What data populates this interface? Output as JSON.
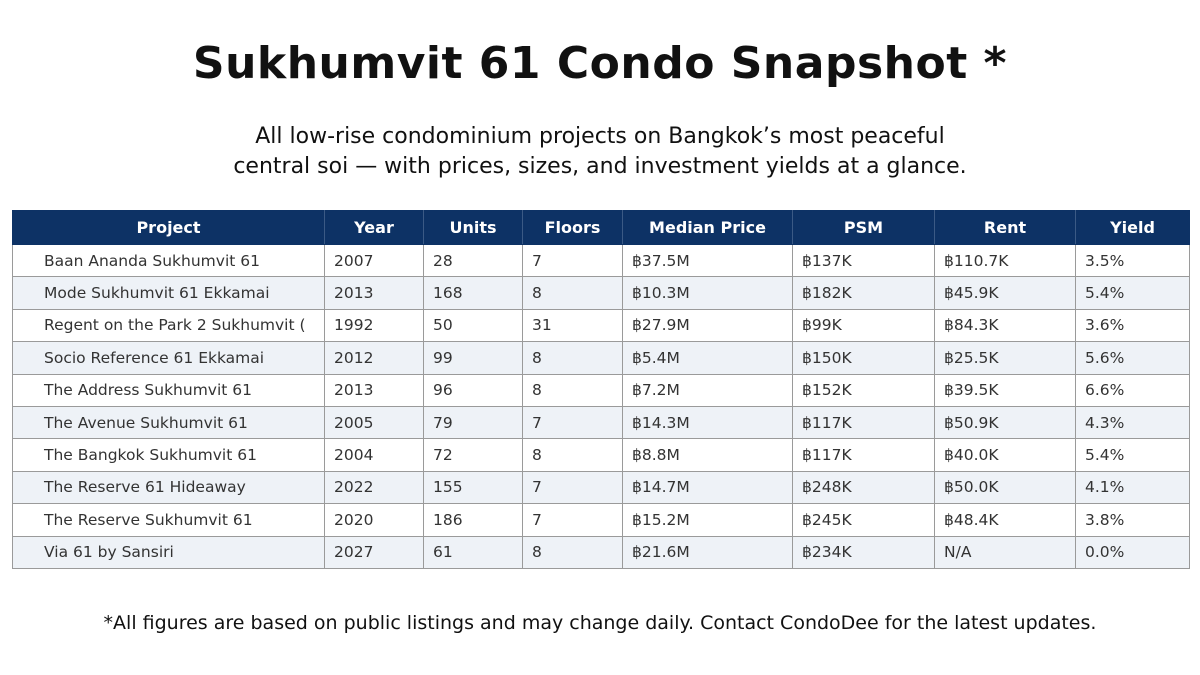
{
  "header": {
    "title": "Sukhumvit 61 Condo Snapshot *",
    "subtitle_line1": "All low-rise condominium projects on Bangkok’s most peaceful",
    "subtitle_line2": "central soi — with prices, sizes, and investment yields at a glance."
  },
  "table": {
    "columns": [
      "Project",
      "Year",
      "Units",
      "Floors",
      "Median Price",
      "PSM",
      "Rent",
      "Yield"
    ],
    "header_color": "#0d3265",
    "rows": [
      [
        "Baan Ananda Sukhumvit 61",
        "2007",
        "28",
        "7",
        "฿37.5M",
        "฿137K",
        "฿110.7K",
        "3.5%"
      ],
      [
        "Mode Sukhumvit 61 Ekkamai",
        "2013",
        "168",
        "8",
        "฿10.3M",
        "฿182K",
        "฿45.9K",
        "5.4%"
      ],
      [
        "Regent on the Park 2 Sukhumvit (",
        "1992",
        "50",
        "31",
        "฿27.9M",
        "฿99K",
        "฿84.3K",
        "3.6%"
      ],
      [
        "Socio Reference 61 Ekkamai",
        "2012",
        "99",
        "8",
        "฿5.4M",
        "฿150K",
        "฿25.5K",
        "5.6%"
      ],
      [
        "The Address Sukhumvit 61",
        "2013",
        "96",
        "8",
        "฿7.2M",
        "฿152K",
        "฿39.5K",
        "6.6%"
      ],
      [
        "The Avenue Sukhumvit 61",
        "2005",
        "79",
        "7",
        "฿14.3M",
        "฿117K",
        "฿50.9K",
        "4.3%"
      ],
      [
        "The Bangkok Sukhumvit 61",
        "2004",
        "72",
        "8",
        "฿8.8M",
        "฿117K",
        "฿40.0K",
        "5.4%"
      ],
      [
        "The Reserve 61 Hideaway",
        "2022",
        "155",
        "7",
        "฿14.7M",
        "฿248K",
        "฿50.0K",
        "4.1%"
      ],
      [
        "The Reserve Sukhumvit 61",
        "2020",
        "186",
        "7",
        "฿15.2M",
        "฿245K",
        "฿48.4K",
        "3.8%"
      ],
      [
        "Via 61 by Sansiri",
        "2027",
        "61",
        "8",
        "฿21.6M",
        "฿234K",
        "N/A",
        "0.0%"
      ]
    ]
  },
  "footer": {
    "note": "*All figures are based on public listings and may change daily. Contact CondoDee for the latest updates."
  }
}
